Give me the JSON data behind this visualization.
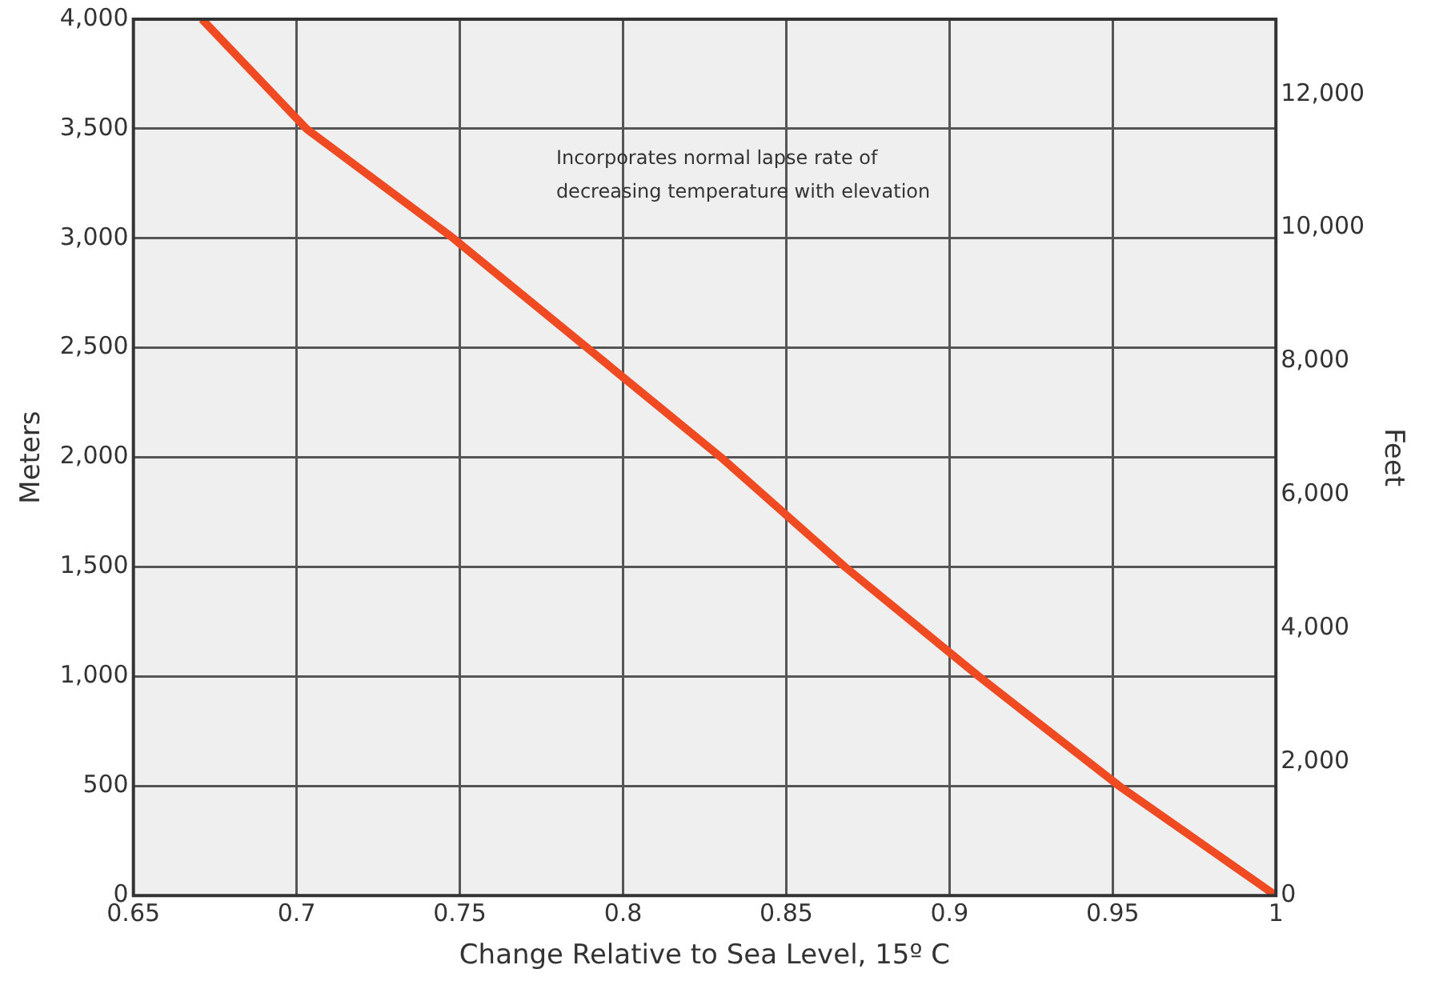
{
  "chart_data": {
    "type": "line",
    "xlabel": "Change Relative to Sea Level, 15º C",
    "ylabel": "Meters",
    "y2label": "Feet",
    "annotations": [
      "Incorporates normal lapse rate of decreasing temperature with elevation"
    ],
    "x": [
      0.671,
      0.703,
      0.748,
      0.789,
      0.83,
      0.868,
      0.909,
      0.952,
      1.0
    ],
    "series": [
      {
        "color": "#f04a23",
        "values": [
          4000,
          3500,
          3000,
          2500,
          2000,
          1500,
          1000,
          500,
          0
        ]
      }
    ],
    "xlim": [
      0.65,
      1.0
    ],
    "xticks": [
      0.65,
      0.7,
      0.75,
      0.8,
      0.85,
      0.9,
      0.95,
      1
    ],
    "ylim": [
      0,
      4000
    ],
    "yticks": [
      0,
      500,
      {
        "value": 1000,
        "label": "1,000"
      },
      {
        "value": 1500,
        "label": "1,500"
      },
      {
        "value": 2000,
        "label": "2,000"
      },
      {
        "value": 2500,
        "label": "2,500"
      },
      {
        "value": 3000,
        "label": "3,000"
      },
      {
        "value": 3500,
        "label": "3,500"
      },
      {
        "value": 4000,
        "label": "4,000"
      }
    ],
    "y2lim": [
      0,
      13123
    ],
    "y2ticks": [
      0,
      {
        "value": 2000,
        "label": "2,000"
      },
      {
        "value": 4000,
        "label": "4,000"
      },
      {
        "value": 6000,
        "label": "6,000"
      },
      {
        "value": 8000,
        "label": "8,000"
      },
      {
        "value": 10000,
        "label": "10,000"
      },
      {
        "value": 12000,
        "label": "12,000"
      }
    ],
    "grid": true,
    "legend": false,
    "marker": "none",
    "line_style": "solid"
  }
}
